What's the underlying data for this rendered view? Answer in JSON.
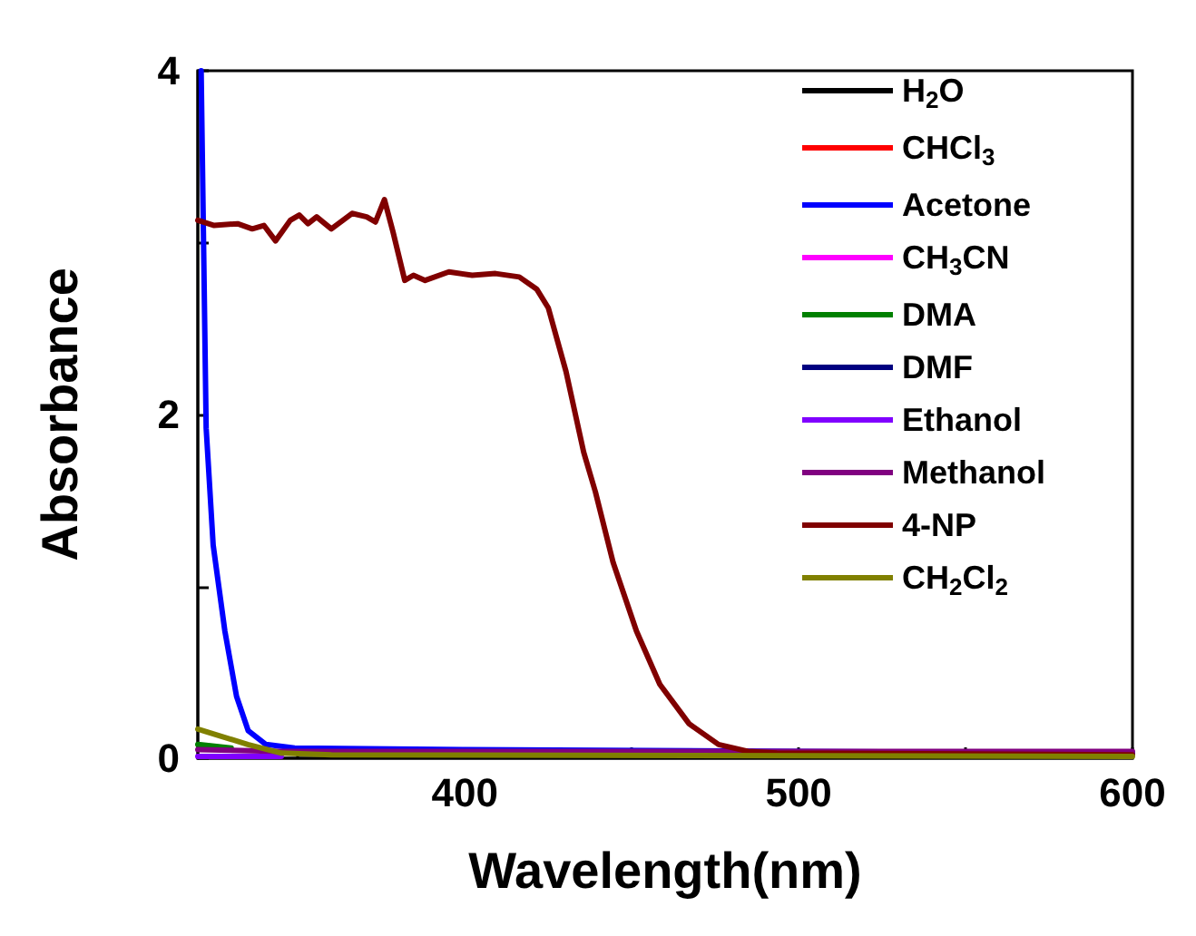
{
  "chart_data": {
    "type": "line",
    "xlabel": "Wavelength(nm)",
    "ylabel": "Absorbance",
    "xlim": [
      320,
      600
    ],
    "xticks": [
      {
        "value": 350,
        "label": null
      },
      400,
      {
        "value": 450,
        "label": null
      },
      500,
      {
        "value": 550,
        "label": null
      },
      600
    ],
    "ylim": [
      0,
      4
    ],
    "yticks": [
      0,
      {
        "value": 1,
        "label": null
      },
      2,
      {
        "value": 3,
        "label": null
      },
      4
    ],
    "legend": "top right",
    "grid": false,
    "marker": "none",
    "line_style": "solid",
    "series": [
      {
        "name": "H$_{2}$O",
        "color": "#000000"
      },
      {
        "name": "CHCl$_{3}$",
        "color": "#ff0000"
      },
      {
        "name": "Acetone",
        "color": "#0000ff",
        "x": [
          321,
          322.5,
          324.6,
          328.1,
          331.6,
          335.1,
          340.4,
          349,
          400,
          500,
          600
        ],
        "values": [
          4,
          1.92,
          1.24,
          0.74,
          0.36,
          0.16,
          0.08,
          0.06,
          0.05,
          0.04,
          0.03
        ]
      },
      {
        "name": "CH$_{3}$CN",
        "color": "#ff00ff"
      },
      {
        "name": "DMA",
        "color": "#008000",
        "x": [
          320,
          330
        ],
        "values": [
          0.08,
          0.06
        ]
      },
      {
        "name": "DMF",
        "color": "#000080"
      },
      {
        "name": "Ethanol",
        "color": "#8000ff",
        "x": [
          320,
          345
        ],
        "values": [
          0.01,
          0.01
        ]
      },
      {
        "name": "Methanol",
        "color": "#800080",
        "x": [
          320,
          345,
          600
        ],
        "values": [
          0.05,
          0.04,
          0.04
        ]
      },
      {
        "name": "4-NP",
        "color": "#800000",
        "x": [
          320,
          324.9,
          331.9,
          336.3,
          339.8,
          343.3,
          347.7,
          350.4,
          353,
          355.6,
          360,
          366.2,
          370.6,
          373.2,
          375.9,
          378.5,
          382,
          384.6,
          388.1,
          395.2,
          402.2,
          409.2,
          416.3,
          421.5,
          425,
          430.3,
          435.6,
          439.1,
          444.4,
          451.4,
          458.4,
          467.2,
          476,
          484.8,
          493.5,
          600
        ],
        "values": [
          3.13,
          3.1,
          3.11,
          3.08,
          3.1,
          3.01,
          3.13,
          3.16,
          3.11,
          3.15,
          3.08,
          3.17,
          3.15,
          3.12,
          3.25,
          3.06,
          2.78,
          2.81,
          2.78,
          2.83,
          2.81,
          2.82,
          2.8,
          2.73,
          2.62,
          2.25,
          1.78,
          1.55,
          1.14,
          0.74,
          0.43,
          0.2,
          0.08,
          0.04,
          0.03,
          0.02
        ]
      },
      {
        "name": "CH$_{2}$Cl$_{2}$",
        "color": "#808000",
        "x": [
          320,
          335,
          345,
          360,
          600
        ],
        "values": [
          0.17,
          0.08,
          0.03,
          0.02,
          0.01
        ]
      }
    ]
  }
}
